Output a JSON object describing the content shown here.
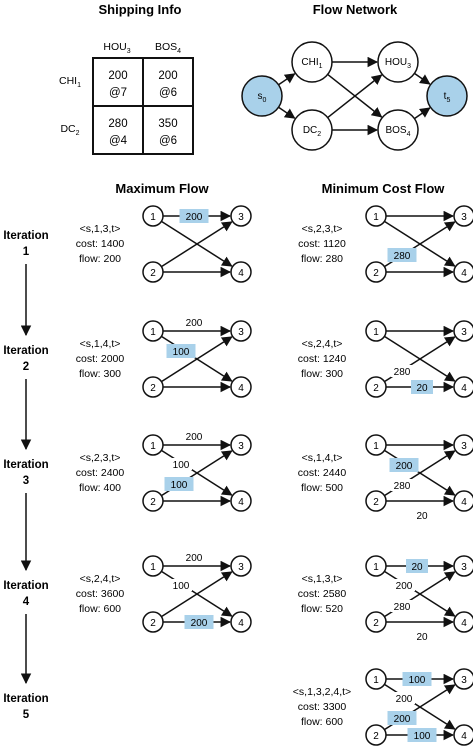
{
  "shipping": {
    "title": "Shipping Info",
    "col_headers": [
      {
        "main": "HOU",
        "sub": "3"
      },
      {
        "main": "BOS",
        "sub": "4"
      }
    ],
    "row_headers": [
      {
        "main": "CHI",
        "sub": "1"
      },
      {
        "main": "DC",
        "sub": "2"
      }
    ],
    "cells": [
      [
        {
          "cap": "200",
          "cost": "@7"
        },
        {
          "cap": "200",
          "cost": "@6"
        }
      ],
      [
        {
          "cap": "280",
          "cost": "@4"
        },
        {
          "cap": "350",
          "cost": "@6"
        }
      ]
    ]
  },
  "network": {
    "title": "Flow Network",
    "nodes": [
      {
        "id": "s",
        "main": "s",
        "sub": "0",
        "highlight": true
      },
      {
        "id": "chi",
        "main": "CHI",
        "sub": "1",
        "highlight": false
      },
      {
        "id": "dc",
        "main": "DC",
        "sub": "2",
        "highlight": false
      },
      {
        "id": "hou",
        "main": "HOU",
        "sub": "3",
        "highlight": false
      },
      {
        "id": "bos",
        "main": "BOS",
        "sub": "4",
        "highlight": false
      },
      {
        "id": "t",
        "main": "t",
        "sub": "5",
        "highlight": true
      }
    ]
  },
  "headers": {
    "max_flow": "Maximum Flow",
    "min_cost": "Minimum Cost Flow"
  },
  "iteration_word": "Iteration",
  "iterations": [
    {
      "number": "1",
      "max": {
        "path": "<s,1,3,t>",
        "cost": "cost: 1400",
        "flow": "flow: 200",
        "edges": [
          {
            "e": "13",
            "label": "200",
            "hl": true
          }
        ]
      },
      "min": {
        "path": "<s,2,3,t>",
        "cost": "cost: 1120",
        "flow": "flow: 280",
        "edges": [
          {
            "e": "23",
            "label": "280",
            "hl": true
          }
        ]
      }
    },
    {
      "number": "2",
      "max": {
        "path": "<s,1,4,t>",
        "cost": "cost: 2000",
        "flow": "flow: 300",
        "edges": [
          {
            "e": "13",
            "label": "200",
            "hl": false
          },
          {
            "e": "14",
            "label": "100",
            "hl": true
          }
        ]
      },
      "min": {
        "path": "<s,2,4,t>",
        "cost": "cost: 1240",
        "flow": "flow: 300",
        "edges": [
          {
            "e": "23",
            "label": "280",
            "hl": false
          },
          {
            "e": "24",
            "label": "20",
            "hl": true
          }
        ]
      }
    },
    {
      "number": "3",
      "max": {
        "path": "<s,2,3,t>",
        "cost": "cost: 2400",
        "flow": "flow: 400",
        "edges": [
          {
            "e": "13",
            "label": "200",
            "hl": false
          },
          {
            "e": "14",
            "label": "100",
            "hl": false
          },
          {
            "e": "23",
            "label": "100",
            "hl": true
          }
        ]
      },
      "min": {
        "path": "<s,1,4,t>",
        "cost": "cost: 2440",
        "flow": "flow: 500",
        "edges": [
          {
            "e": "14",
            "label": "200",
            "hl": true
          },
          {
            "e": "23",
            "label": "280",
            "hl": false
          },
          {
            "e": "24",
            "label": "20",
            "hl": false
          }
        ]
      }
    },
    {
      "number": "4",
      "max": {
        "path": "<s,2,4,t>",
        "cost": "cost: 3600",
        "flow": "flow: 600",
        "edges": [
          {
            "e": "13",
            "label": "200",
            "hl": false
          },
          {
            "e": "14",
            "label": "100",
            "hl": false
          },
          {
            "e": "24",
            "label": "200",
            "hl": true
          }
        ]
      },
      "min": {
        "path": "<s,1,3,t>",
        "cost": "cost: 2580",
        "flow": "flow: 520",
        "edges": [
          {
            "e": "13",
            "label": "20",
            "hl": true
          },
          {
            "e": "14",
            "label": "200",
            "hl": false
          },
          {
            "e": "23",
            "label": "280",
            "hl": false
          },
          {
            "e": "24",
            "label": "20",
            "hl": false
          }
        ]
      }
    },
    {
      "number": "5",
      "max": null,
      "min": {
        "path": "<s,1,3,2,4,t>",
        "cost": "cost: 3300",
        "flow": "flow: 600",
        "edges": [
          {
            "e": "13",
            "label": "100",
            "hl": true
          },
          {
            "e": "14",
            "label": "200",
            "hl": false
          },
          {
            "e": "23",
            "label": "200",
            "hl": true
          },
          {
            "e": "24",
            "label": "100",
            "hl": true
          }
        ]
      }
    }
  ],
  "colors": {
    "highlight": "#a9d1ea",
    "stroke": "#111111",
    "background": "#ffffff"
  }
}
